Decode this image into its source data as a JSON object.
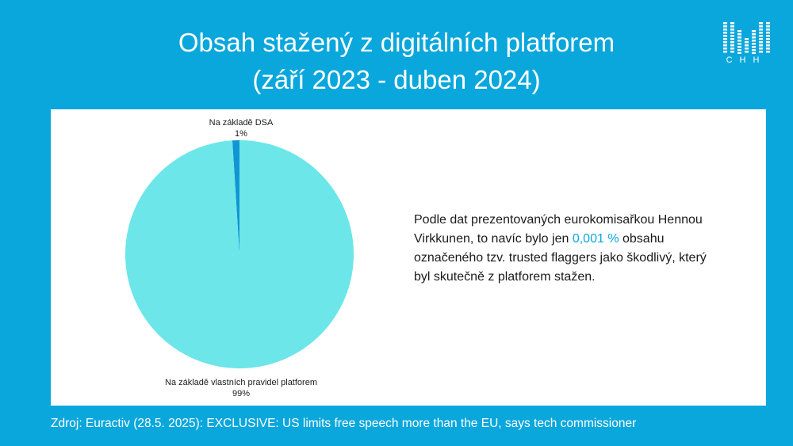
{
  "title_line1": "Obsah stažený z digitálních platforem",
  "title_line2": "(září 2023 - duben 2024)",
  "logo": {
    "text": "CHH",
    "icon": "chh-logo-icon",
    "color": "#ffffff"
  },
  "colors": {
    "background": "#0aa7dc",
    "accent": "#0aa7dc"
  },
  "chart_data": {
    "type": "pie",
    "slices": [
      {
        "label": "Na základě DSA",
        "value": 1,
        "value_label": "1%",
        "color": "#1196d4"
      },
      {
        "label": "Na základě vlastních pravidel platforem",
        "value": 99,
        "value_label": "99%",
        "color": "#6ce6e8"
      }
    ],
    "title": ""
  },
  "note": {
    "part1": "Podle dat prezentovaných eurokomisařkou Hennou Virkkunen, to navíc bylo jen ",
    "highlight": "0,001 %",
    "part2": " obsahu označeného tzv. trusted flaggers jako škodlivý, který byl skutečně z platforem stažen."
  },
  "source": "Zdroj: Euractiv (28.5. 2025): EXCLUSIVE: US limits free speech more than the EU, says tech commissioner"
}
